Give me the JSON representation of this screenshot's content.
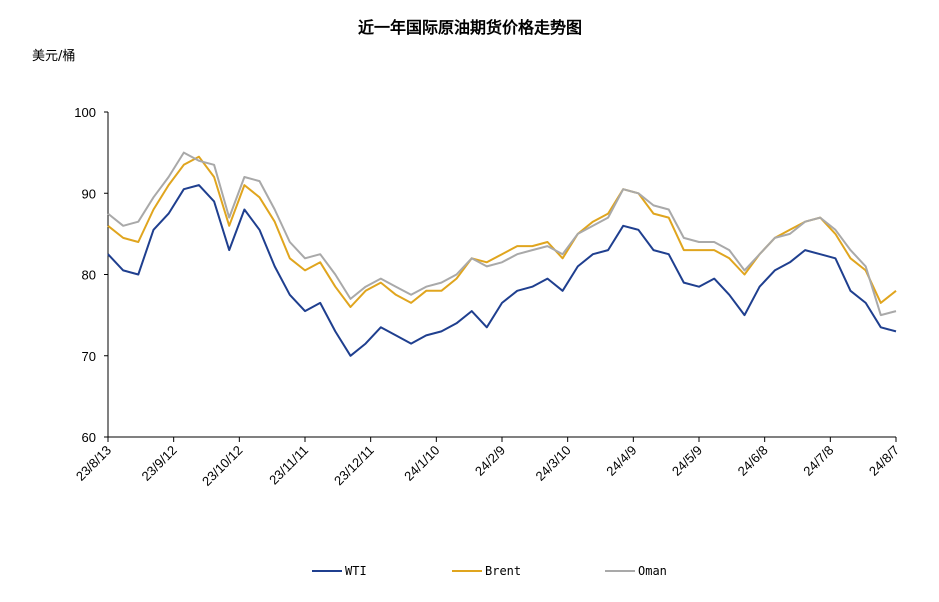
{
  "chart_data": {
    "type": "line",
    "title": "近一年国际原油期货价格走势图",
    "ylabel": "美元/桶",
    "ylim": [
      60,
      100
    ],
    "yticks": [
      "100",
      "90",
      "80",
      "70",
      "60"
    ],
    "xticks": [
      "23/8/13",
      "23/9/12",
      "23/10/12",
      "23/11/11",
      "23/12/11",
      "24/1/10",
      "24/2/9",
      "24/3/10",
      "24/4/9",
      "24/5/9",
      "24/6/8",
      "24/7/8",
      "24/8/7"
    ],
    "grid": false,
    "legend": "bottom",
    "x": [
      "23/8/13",
      "23/8/20",
      "23/8/27",
      "23/9/3",
      "23/9/10",
      "23/9/17",
      "23/9/24",
      "23/10/1",
      "23/10/8",
      "23/10/15",
      "23/10/22",
      "23/10/29",
      "23/11/5",
      "23/11/12",
      "23/11/19",
      "23/11/26",
      "23/12/3",
      "23/12/10",
      "23/12/17",
      "23/12/24",
      "23/12/31",
      "24/1/7",
      "24/1/14",
      "24/1/21",
      "24/1/28",
      "24/2/4",
      "24/2/11",
      "24/2/18",
      "24/2/25",
      "24/3/3",
      "24/3/10",
      "24/3/17",
      "24/3/24",
      "24/3/31",
      "24/4/7",
      "24/4/14",
      "24/4/21",
      "24/4/28",
      "24/5/5",
      "24/5/12",
      "24/5/19",
      "24/5/26",
      "24/6/2",
      "24/6/9",
      "24/6/16",
      "24/6/23",
      "24/6/30",
      "24/7/7",
      "24/7/14",
      "24/7/21",
      "24/7/28",
      "24/8/4",
      "24/8/7"
    ],
    "series": [
      {
        "name": "WTI",
        "color": "#1f3f8f",
        "values": [
          82.5,
          80.5,
          80.0,
          85.5,
          87.5,
          90.5,
          91.0,
          89.0,
          83.0,
          88.0,
          85.5,
          81.0,
          77.5,
          75.5,
          76.5,
          73.0,
          70.0,
          71.5,
          73.5,
          72.5,
          71.5,
          72.5,
          73.0,
          74.0,
          75.5,
          73.5,
          76.5,
          78.0,
          78.5,
          79.5,
          78.0,
          81.0,
          82.5,
          83.0,
          86.0,
          85.5,
          83.0,
          82.5,
          79.0,
          78.5,
          79.5,
          77.5,
          75.0,
          78.5,
          80.5,
          81.5,
          83.0,
          82.5,
          82.0,
          78.0,
          76.5,
          73.5,
          73.0
        ]
      },
      {
        "name": "Brent",
        "color": "#e0a51e",
        "values": [
          86.0,
          84.5,
          84.0,
          88.0,
          91.0,
          93.5,
          94.5,
          92.0,
          86.0,
          91.0,
          89.5,
          86.5,
          82.0,
          80.5,
          81.5,
          78.5,
          76.0,
          78.0,
          79.0,
          77.5,
          76.5,
          78.0,
          78.0,
          79.5,
          82.0,
          81.5,
          82.5,
          83.5,
          83.5,
          84.0,
          82.0,
          85.0,
          86.5,
          87.5,
          90.5,
          90.0,
          87.5,
          87.0,
          83.0,
          83.0,
          83.0,
          82.0,
          80.0,
          82.5,
          84.5,
          85.5,
          86.5,
          87.0,
          85.0,
          82.0,
          80.5,
          76.5,
          78.0
        ]
      },
      {
        "name": "Oman",
        "color": "#a9a9a9",
        "values": [
          87.5,
          86.0,
          86.5,
          89.5,
          92.0,
          95.0,
          94.0,
          93.5,
          87.0,
          92.0,
          91.5,
          88.0,
          84.0,
          82.0,
          82.5,
          80.0,
          77.0,
          78.5,
          79.5,
          78.5,
          77.5,
          78.5,
          79.0,
          80.0,
          82.0,
          81.0,
          81.5,
          82.5,
          83.0,
          83.5,
          82.5,
          85.0,
          86.0,
          87.0,
          90.5,
          90.0,
          88.5,
          88.0,
          84.5,
          84.0,
          84.0,
          83.0,
          80.5,
          82.5,
          84.5,
          85.0,
          86.5,
          87.0,
          85.5,
          83.0,
          81.0,
          75.0,
          75.5
        ]
      }
    ]
  }
}
